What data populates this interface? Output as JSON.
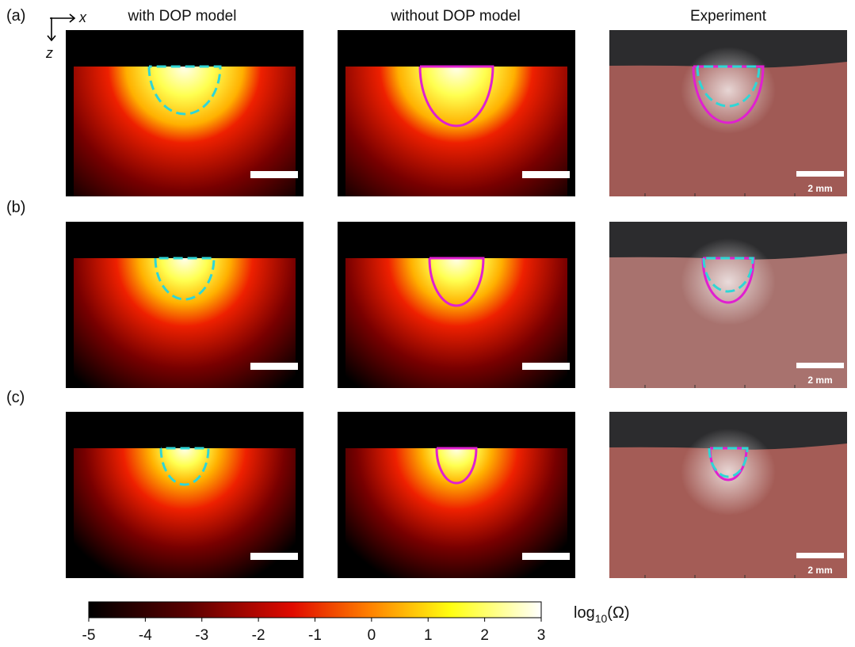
{
  "axes": {
    "x_label": "x",
    "z_label": "z"
  },
  "column_titles": [
    "with DOP model",
    "without DOP model",
    "Experiment"
  ],
  "row_labels": [
    "(a)",
    "(b)",
    "(c)"
  ],
  "scale_bar_labels": [
    "2 mm",
    "2 mm",
    "2 mm"
  ],
  "colorbar": {
    "label": "log",
    "label_subscript": "10",
    "label_argument": "(Ω)",
    "lim": [
      -5,
      3
    ],
    "ticks": [
      -5,
      -4,
      -3,
      -2,
      -1,
      0,
      1,
      2,
      3
    ]
  }
}
